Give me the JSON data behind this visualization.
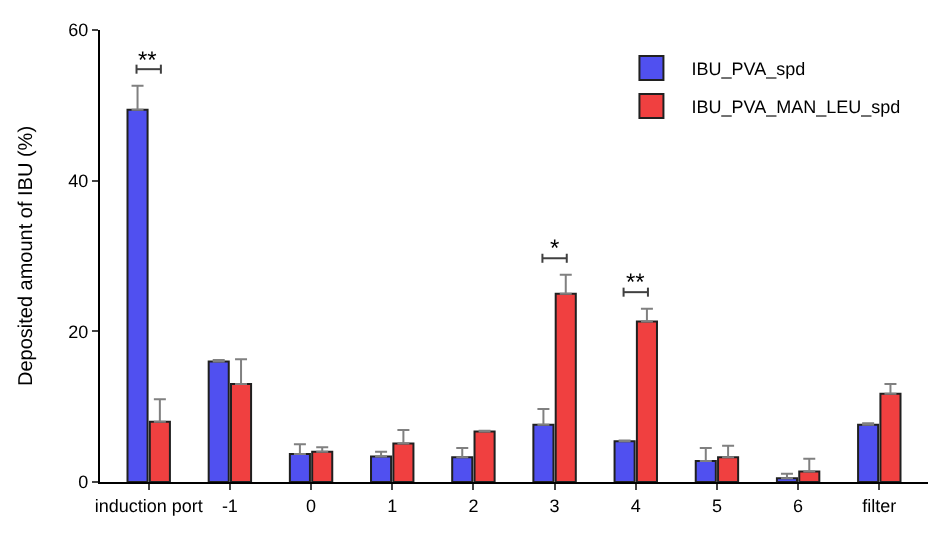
{
  "chart_data": {
    "type": "bar",
    "ylabel": "Deposited amount of IBU (%)",
    "categories": [
      "induction port",
      "-1",
      "0",
      "1",
      "2",
      "3",
      "4",
      "5",
      "6",
      "filter"
    ],
    "series": [
      {
        "name": "IBU_PVA_spd",
        "color": "#5050f0",
        "values": [
          49.4,
          16.0,
          3.7,
          3.4,
          3.3,
          7.6,
          5.4,
          2.8,
          0.5,
          7.6
        ],
        "errors": [
          [
            49.4,
            52.6
          ],
          [
            16.0,
            16.2
          ],
          [
            3.7,
            5.0
          ],
          [
            3.4,
            4.0
          ],
          [
            3.3,
            4.5
          ],
          [
            7.6,
            9.7
          ],
          [
            5.4,
            5.5
          ],
          [
            2.8,
            4.5
          ],
          [
            0.5,
            1.1
          ],
          [
            7.6,
            7.8
          ]
        ]
      },
      {
        "name": "IBU_PVA_MAN_LEU_spd",
        "color": "#f04040",
        "values": [
          8.0,
          13.0,
          4.0,
          5.1,
          6.7,
          25.0,
          21.3,
          3.3,
          1.4,
          11.7
        ],
        "errors": [
          [
            8.0,
            11.0
          ],
          [
            13.0,
            16.3
          ],
          [
            4.0,
            4.6
          ],
          [
            5.1,
            6.9
          ],
          [
            6.7,
            6.8
          ],
          [
            25.0,
            27.5
          ],
          [
            21.3,
            23.0
          ],
          [
            3.3,
            4.8
          ],
          [
            1.4,
            3.1
          ],
          [
            11.7,
            13.0
          ]
        ]
      }
    ],
    "annotations": [
      {
        "text": "**",
        "x": "induction port",
        "y": 52.6
      },
      {
        "text": "*",
        "x": "3",
        "y": 27.5
      },
      {
        "text": "**",
        "x": "4",
        "y": 23.0
      }
    ],
    "ylim": [
      0,
      60
    ],
    "yticks": [
      0,
      20,
      40,
      60
    ],
    "legend": "top right"
  }
}
